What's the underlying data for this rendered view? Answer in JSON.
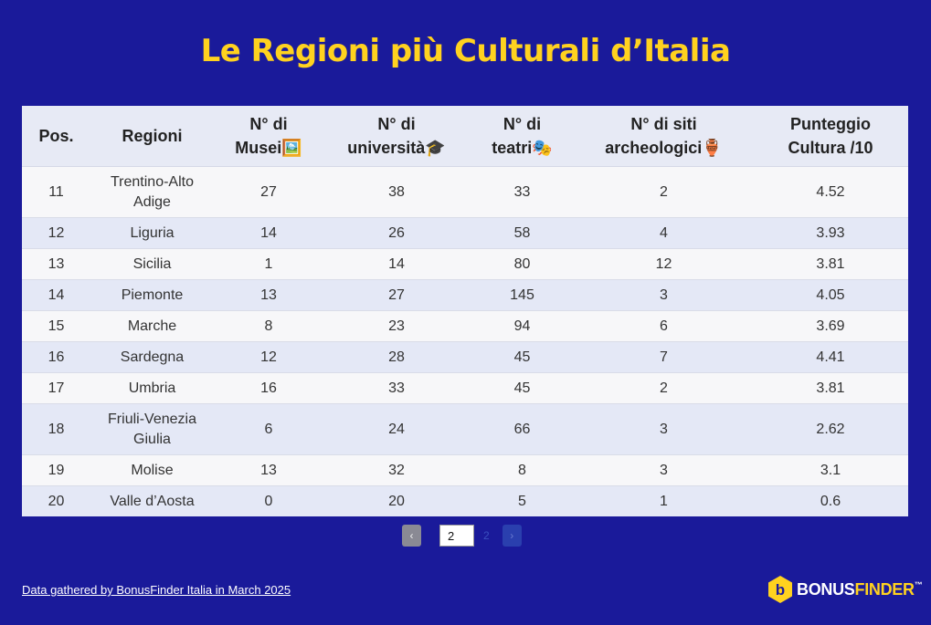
{
  "title": "Le Regioni più Culturali d’Italia",
  "table": {
    "headers": [
      [
        "Pos."
      ],
      [
        "Regioni"
      ],
      [
        "N° di",
        "Musei🖼️"
      ],
      [
        "N° di",
        "università🎓"
      ],
      [
        "N° di",
        "teatri🎭"
      ],
      [
        "N° di siti",
        "archeologici🏺"
      ],
      [
        "Punteggio",
        "Cultura /10"
      ]
    ],
    "rows": [
      [
        "11",
        "Trentino-Alto Adige",
        "27",
        "38",
        "33",
        "2",
        "4.52"
      ],
      [
        "12",
        "Liguria",
        "14",
        "26",
        "58",
        "4",
        "3.93"
      ],
      [
        "13",
        "Sicilia",
        "1",
        "14",
        "80",
        "12",
        "3.81"
      ],
      [
        "14",
        "Piemonte",
        "13",
        "27",
        "145",
        "3",
        "4.05"
      ],
      [
        "15",
        "Marche",
        "8",
        "23",
        "94",
        "6",
        "3.69"
      ],
      [
        "16",
        "Sardegna",
        "12",
        "28",
        "45",
        "7",
        "4.41"
      ],
      [
        "17",
        "Umbria",
        "16",
        "33",
        "45",
        "2",
        "3.81"
      ],
      [
        "18",
        "Friuli-Venezia Giulia",
        "6",
        "24",
        "66",
        "3",
        "2.62"
      ],
      [
        "19",
        "Molise",
        "13",
        "32",
        "8",
        "3",
        "3.1"
      ],
      [
        "20",
        "Valle d’Aosta",
        "0",
        "20",
        "5",
        "1",
        "0.6"
      ]
    ]
  },
  "pagination": {
    "prev_label": "‹",
    "current_page": "2",
    "total_pages": "2",
    "next_label": "›"
  },
  "source_link": "Data gathered by BonusFinder Italia in March 2025",
  "logo": {
    "part1": "BONUS",
    "part2": "FINDER",
    "tm": "™",
    "icon": "b-hexagon-icon"
  },
  "colors": {
    "background": "#1a1a9a",
    "title": "#ffd21f",
    "header_bg": "#e7eaf5",
    "row_alt": "#e4e8f6"
  }
}
